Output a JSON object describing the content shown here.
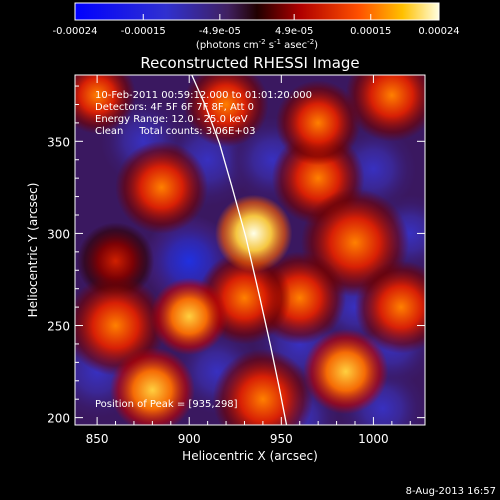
{
  "colorbar": {
    "tick_labels": [
      "-0.00024",
      "-0.00015",
      "-4.9e-05",
      "4.9e-05",
      "0.00015",
      "0.00024"
    ],
    "tick_values": [
      -0.00024,
      -0.00015,
      -4.9e-05,
      4.9e-05,
      0.00015,
      0.00024
    ],
    "units_main": "(photons cm",
    "units_exp1": "-2",
    "units_mid": " s",
    "units_exp2": "-1",
    "units_tail": " asec",
    "units_exp3": "-2",
    "units_close": ")",
    "range": [
      -0.00024,
      0.00024
    ]
  },
  "chart_data": {
    "type": "heatmap",
    "title": "Reconstructed RHESSI Image",
    "xlabel": "Heliocentric X (arcsec)",
    "ylabel": "Heliocentric Y (arcsec)",
    "xlim": [
      838,
      1028
    ],
    "ylim": [
      196,
      386
    ],
    "x_ticks": [
      850,
      900,
      950,
      1000
    ],
    "y_ticks": [
      200,
      250,
      300,
      350
    ],
    "annotations": {
      "time": "10-Feb-2011 00:59:12.000 to 01:01:20.000",
      "detectors": "Detectors: 4F 5F 6F 7F 8F, Att 0",
      "energy": "Energy Range: 12.0 - 25.0 keV",
      "clean": "Clean     Total counts: 3.06E+03",
      "peak": "Position of Peak = [935,298]"
    },
    "limb_curve": {
      "x": [
        901.2,
        908.9,
        916.5,
        923.2,
        930.8,
        938.5,
        944.2,
        949.0,
        952.8
      ],
      "y": [
        386.5,
        369.1,
        348.7,
        325.4,
        297.9,
        264.5,
        238.9,
        215.6,
        196.1
      ]
    },
    "peak": {
      "x": 935,
      "y": 298
    },
    "blobs": [
      {
        "x": 935,
        "y": 300,
        "v": 1.0,
        "s": 10
      },
      {
        "x": 885,
        "y": 325,
        "v": 0.55,
        "s": 12
      },
      {
        "x": 970,
        "y": 360,
        "v": 0.5,
        "s": 11
      },
      {
        "x": 970,
        "y": 330,
        "v": 0.45,
        "s": 12
      },
      {
        "x": 990,
        "y": 295,
        "v": 0.45,
        "s": 14
      },
      {
        "x": 1015,
        "y": 260,
        "v": 0.55,
        "s": 12
      },
      {
        "x": 985,
        "y": 225,
        "v": 0.75,
        "s": 11
      },
      {
        "x": 960,
        "y": 265,
        "v": 0.5,
        "s": 12
      },
      {
        "x": 930,
        "y": 265,
        "v": 0.55,
        "s": 12
      },
      {
        "x": 900,
        "y": 255,
        "v": 0.6,
        "s": 10
      },
      {
        "x": 860,
        "y": 250,
        "v": 0.5,
        "s": 13
      },
      {
        "x": 880,
        "y": 215,
        "v": 0.6,
        "s": 11
      },
      {
        "x": 940,
        "y": 210,
        "v": 0.55,
        "s": 13
      },
      {
        "x": 920,
        "y": 370,
        "v": 0.5,
        "s": 11
      },
      {
        "x": 1010,
        "y": 375,
        "v": 0.45,
        "s": 12
      },
      {
        "x": 850,
        "y": 375,
        "v": 0.4,
        "s": 10
      },
      {
        "x": 860,
        "y": 285,
        "v": 0.3,
        "s": 10
      },
      {
        "x": 910,
        "y": 340,
        "v": -0.55,
        "s": 12
      },
      {
        "x": 945,
        "y": 340,
        "v": -0.45,
        "s": 11
      },
      {
        "x": 875,
        "y": 350,
        "v": -0.5,
        "s": 11
      },
      {
        "x": 900,
        "y": 285,
        "v": -0.65,
        "s": 12
      },
      {
        "x": 1000,
        "y": 335,
        "v": -0.5,
        "s": 11
      },
      {
        "x": 1020,
        "y": 300,
        "v": -0.4,
        "s": 10
      },
      {
        "x": 960,
        "y": 240,
        "v": -0.5,
        "s": 12
      },
      {
        "x": 1010,
        "y": 240,
        "v": -0.45,
        "s": 11
      },
      {
        "x": 850,
        "y": 225,
        "v": -0.45,
        "s": 12
      },
      {
        "x": 915,
        "y": 225,
        "v": -0.55,
        "s": 11
      },
      {
        "x": 960,
        "y": 200,
        "v": -0.4,
        "s": 10
      },
      {
        "x": 1005,
        "y": 205,
        "v": -0.5,
        "s": 11
      },
      {
        "x": 990,
        "y": 260,
        "v": -0.35,
        "s": 10
      }
    ]
  },
  "footer": {
    "date": "8-Aug-2013 16:57"
  }
}
